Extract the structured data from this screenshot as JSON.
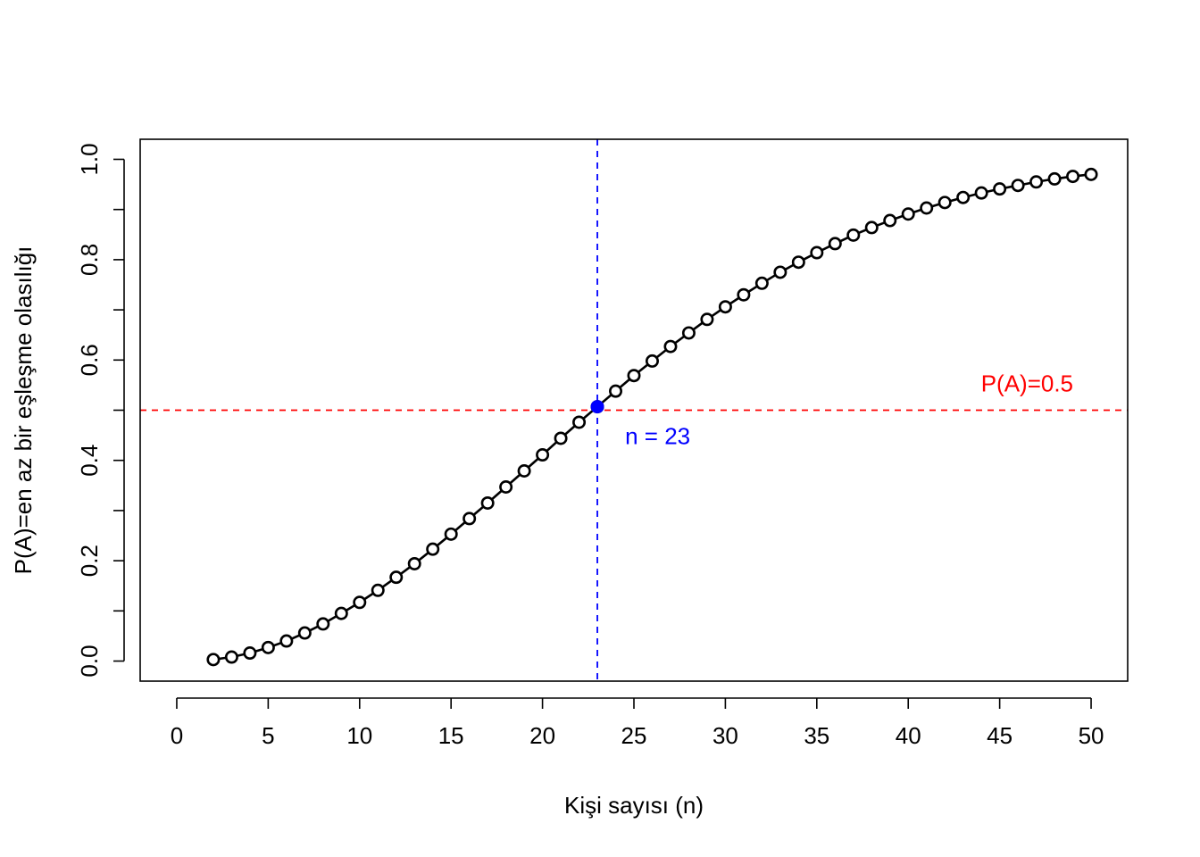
{
  "chart_data": {
    "type": "line",
    "title": "",
    "xlabel": "Kişi sayısı (n)",
    "ylabel": "P(A)=en az bir eşleşme olasılığı",
    "xlim": [
      -2,
      52
    ],
    "ylim": [
      -0.04,
      1.04
    ],
    "x_ticks": [
      0,
      5,
      10,
      15,
      20,
      25,
      30,
      35,
      40,
      45,
      50
    ],
    "x_tick_labels": [
      "0",
      "5",
      "10",
      "15",
      "20",
      "25",
      "30",
      "35",
      "40",
      "45",
      "50"
    ],
    "y_ticks": [
      0.0,
      0.2,
      0.4,
      0.6,
      0.8,
      1.0
    ],
    "y_tick_labels": [
      "0.0",
      "0.2",
      "0.4",
      "0.6",
      "0.8",
      "1.0"
    ],
    "grid": false,
    "marker": "open-circle",
    "series": [
      {
        "color": "#000000",
        "x": [
          2,
          3,
          4,
          5,
          6,
          7,
          8,
          9,
          10,
          11,
          12,
          13,
          14,
          15,
          16,
          17,
          18,
          19,
          20,
          21,
          22,
          23,
          24,
          25,
          26,
          27,
          28,
          29,
          30,
          31,
          32,
          33,
          34,
          35,
          36,
          37,
          38,
          39,
          40,
          41,
          42,
          43,
          44,
          45,
          46,
          47,
          48,
          49,
          50
        ],
        "y": [
          0.003,
          0.008,
          0.016,
          0.027,
          0.04,
          0.056,
          0.074,
          0.095,
          0.117,
          0.141,
          0.167,
          0.194,
          0.223,
          0.253,
          0.284,
          0.315,
          0.347,
          0.379,
          0.411,
          0.444,
          0.476,
          0.507,
          0.538,
          0.569,
          0.598,
          0.627,
          0.654,
          0.681,
          0.706,
          0.73,
          0.753,
          0.775,
          0.795,
          0.814,
          0.832,
          0.849,
          0.864,
          0.878,
          0.891,
          0.903,
          0.914,
          0.924,
          0.933,
          0.941,
          0.948,
          0.955,
          0.961,
          0.966,
          0.97
        ]
      }
    ],
    "highlight_point": {
      "x": 23,
      "y": 0.507,
      "color": "#0000FF"
    },
    "reference_lines": [
      {
        "orientation": "horizontal",
        "value": 0.5,
        "color": "#FF0000",
        "style": "dashed"
      },
      {
        "orientation": "vertical",
        "value": 23,
        "color": "#0000FF",
        "style": "dashed"
      }
    ],
    "annotations": [
      {
        "text": "P(A)=0.5",
        "x": 46.5,
        "y": 0.55,
        "color": "#FF0000"
      },
      {
        "text": "n = 23",
        "x": 26.3,
        "y": 0.445,
        "color": "#0000FF"
      }
    ]
  }
}
